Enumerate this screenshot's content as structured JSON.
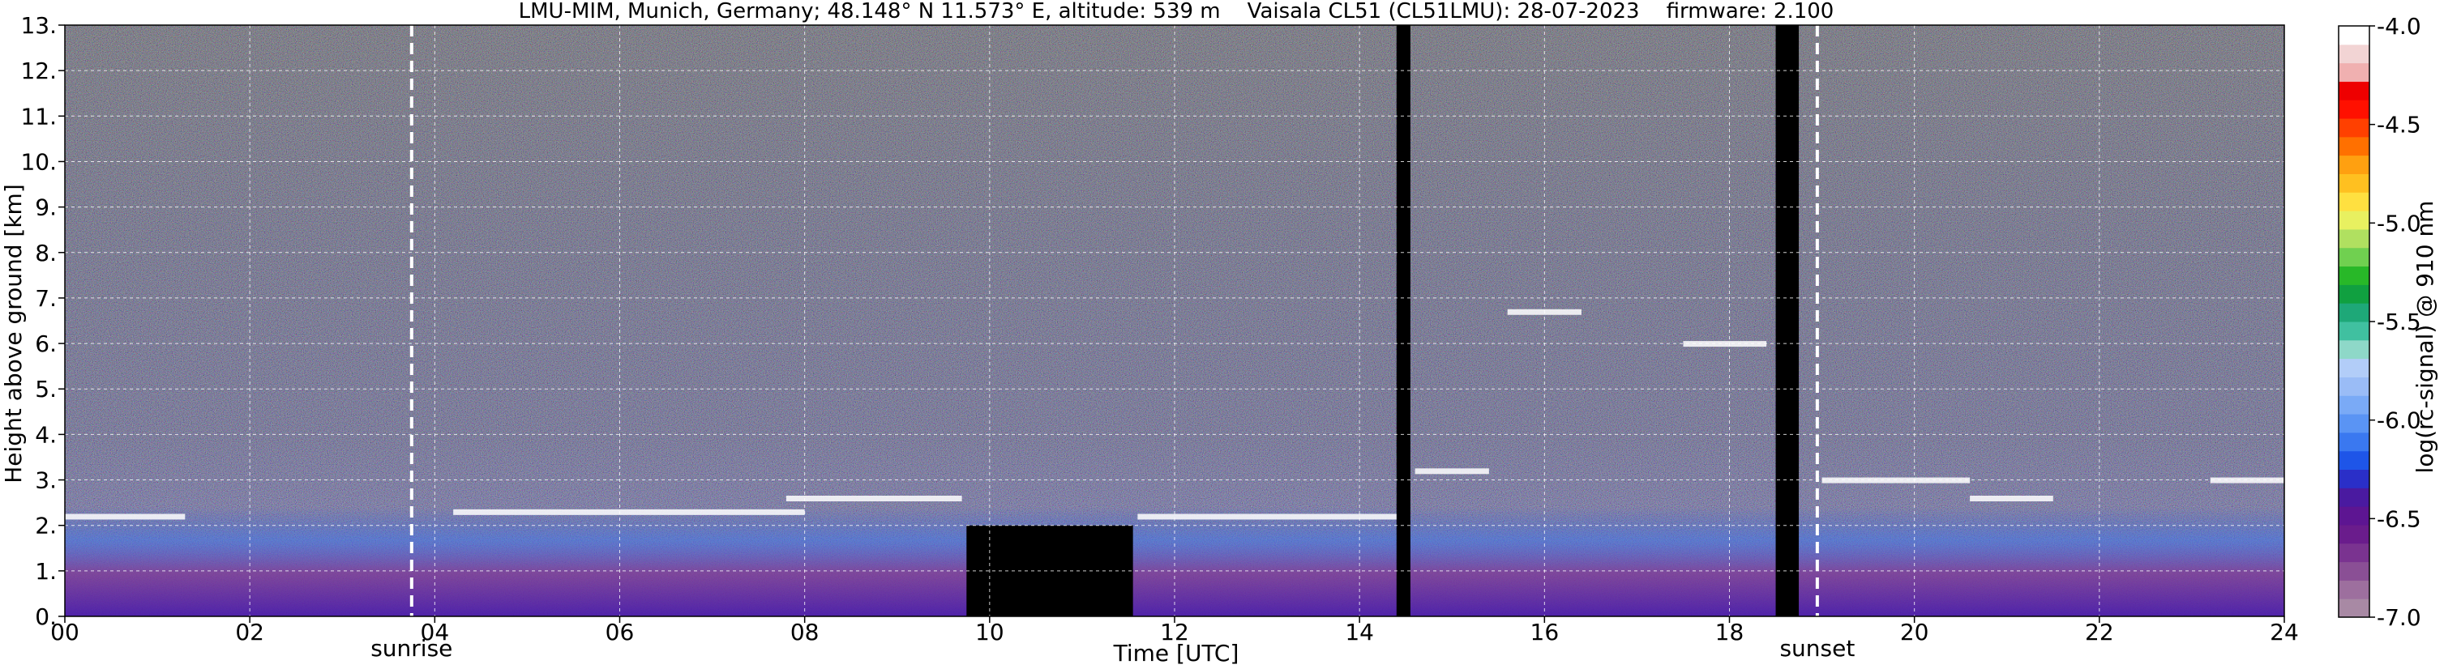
{
  "chart_data": {
    "type": "heatmap",
    "title": "LMU-MIM, Munich, Germany; 48.148° N 11.573° E, altitude: 539 m    Vaisala CL51 (CL51LMU): 28-07-2023    firmware: 2.100",
    "xlabel": "Time [UTC]",
    "ylabel": "Height above ground [km]",
    "xlim": [
      0,
      24
    ],
    "ylim": [
      0,
      13
    ],
    "x_ticks": [
      "00",
      "02",
      "04",
      "06",
      "08",
      "10",
      "12",
      "14",
      "16",
      "18",
      "20",
      "22",
      "24"
    ],
    "y_ticks": [
      "0.",
      "1.",
      "2.",
      "3.",
      "4.",
      "5.",
      "6.",
      "7.",
      "8.",
      "9.",
      "10.",
      "11.",
      "12.",
      "13."
    ],
    "grid": true,
    "colorbar": {
      "label": "log(rc-signal) @ 910 nm",
      "range": [
        -7.0,
        -4.0
      ],
      "ticks": [
        "-4.0",
        "-4.5",
        "-5.0",
        "-5.5",
        "-6.0",
        "-6.5",
        "-7.0"
      ],
      "colors": [
        "#a889a4",
        "#9d6f9e",
        "#8a4f95",
        "#7a3390",
        "#6a1c8c",
        "#5d1592",
        "#4a1aa0",
        "#2a2fc8",
        "#1e55e8",
        "#3a78f0",
        "#5a94f4",
        "#7aaaf6",
        "#9abcf6",
        "#b2cdf8",
        "#8ed8c8",
        "#40c0a0",
        "#1ea878",
        "#10a040",
        "#28b828",
        "#70d050",
        "#b0e060",
        "#e8f060",
        "#ffe040",
        "#ffc020",
        "#ffa010",
        "#ff7000",
        "#ff4000",
        "#ff1000",
        "#ee0000",
        "#f0b0b0",
        "#f2d4d4",
        "#ffffff"
      ]
    },
    "markers": [
      {
        "label": "sunrise",
        "time": 3.75
      },
      {
        "label": "sunset",
        "time": 18.95
      }
    ],
    "no_signal_gaps": [
      {
        "t0": 9.75,
        "t1": 11.55,
        "h_top": 2.0
      },
      {
        "t0": 18.5,
        "t1": 18.75,
        "h_top": 13.0
      },
      {
        "t0": 14.4,
        "t1": 14.55,
        "h_top": 13.0
      }
    ],
    "cloud_layers": [
      {
        "t0": 0.0,
        "t1": 1.3,
        "h": 2.2
      },
      {
        "t0": 4.2,
        "t1": 8.0,
        "h": 2.3
      },
      {
        "t0": 7.8,
        "t1": 9.7,
        "h": 2.6
      },
      {
        "t0": 11.6,
        "t1": 14.4,
        "h": 2.2
      },
      {
        "t0": 14.6,
        "t1": 15.4,
        "h": 3.2
      },
      {
        "t0": 15.6,
        "t1": 16.4,
        "h": 6.7
      },
      {
        "t0": 17.5,
        "t1": 18.4,
        "h": 6.0
      },
      {
        "t0": 19.0,
        "t1": 20.6,
        "h": 3.0
      },
      {
        "t0": 20.6,
        "t1": 21.5,
        "h": 2.6
      },
      {
        "t0": 23.2,
        "t1": 24.0,
        "h": 3.0
      }
    ]
  }
}
